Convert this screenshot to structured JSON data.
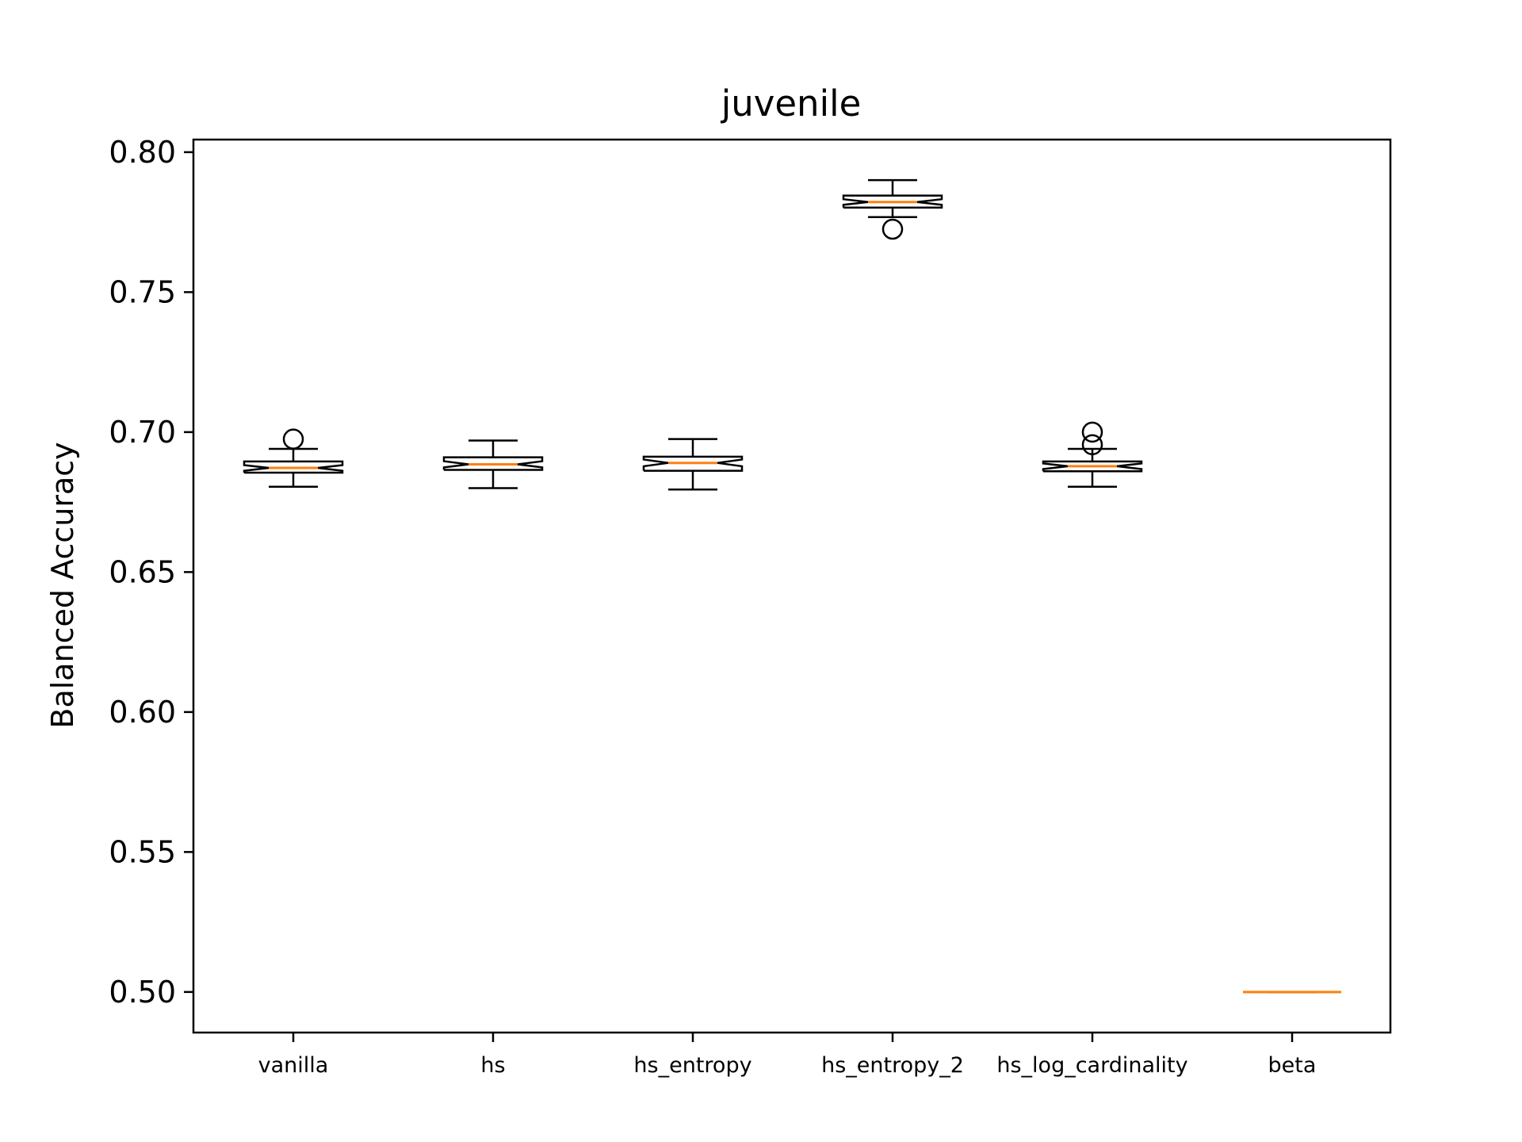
{
  "chart_data": {
    "type": "box",
    "title": "juvenile",
    "xlabel": "",
    "ylabel": "Balanced Accuracy",
    "ylim": [
      0.4855,
      0.8045
    ],
    "yticks": [
      0.5,
      0.55,
      0.6,
      0.65,
      0.7,
      0.75,
      0.8
    ],
    "ytick_labels": [
      "0.50",
      "0.55",
      "0.60",
      "0.65",
      "0.70",
      "0.75",
      "0.80"
    ],
    "notched": true,
    "grid": false,
    "legend": "none",
    "categories": [
      "vanilla",
      "hs",
      "hs_entropy",
      "hs_entropy_2",
      "hs_log_cardinality",
      "beta"
    ],
    "boxes": [
      {
        "category": "vanilla",
        "whisker_low": 0.6805,
        "q1": 0.6855,
        "median": 0.6872,
        "q3": 0.6895,
        "whisker_high": 0.694,
        "notch_low": 0.6862,
        "notch_high": 0.6882,
        "outliers": [
          0.6975
        ]
      },
      {
        "category": "hs",
        "whisker_low": 0.68,
        "q1": 0.6865,
        "median": 0.6885,
        "q3": 0.691,
        "whisker_high": 0.697,
        "notch_low": 0.6874,
        "notch_high": 0.6896,
        "outliers": []
      },
      {
        "category": "hs_entropy",
        "whisker_low": 0.6795,
        "q1": 0.6862,
        "median": 0.689,
        "q3": 0.6912,
        "whisker_high": 0.6975,
        "notch_low": 0.6878,
        "notch_high": 0.6902,
        "outliers": []
      },
      {
        "category": "hs_entropy_2",
        "whisker_low": 0.7768,
        "q1": 0.7802,
        "median": 0.7822,
        "q3": 0.7845,
        "whisker_high": 0.79,
        "notch_low": 0.7812,
        "notch_high": 0.7832,
        "outliers": [
          0.7725
        ]
      },
      {
        "category": "hs_log_cardinality",
        "whisker_low": 0.6805,
        "q1": 0.686,
        "median": 0.6878,
        "q3": 0.6895,
        "whisker_high": 0.694,
        "notch_low": 0.6868,
        "notch_high": 0.6888,
        "outliers": [
          0.6955,
          0.7
        ]
      },
      {
        "category": "beta",
        "whisker_low": 0.5,
        "q1": 0.5,
        "median": 0.5,
        "q3": 0.5,
        "whisker_high": 0.5,
        "notch_low": 0.5,
        "notch_high": 0.5,
        "outliers": []
      }
    ],
    "colors": {
      "box": "#000000",
      "median": "#ff7f0e",
      "background": "#ffffff"
    }
  }
}
